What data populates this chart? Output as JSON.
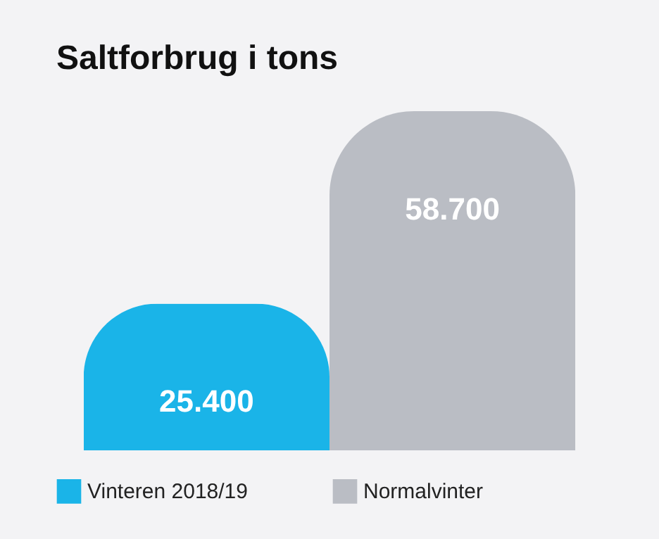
{
  "chart_data": {
    "type": "bar",
    "title": "Saltforbrug i tons",
    "categories": [
      null
    ],
    "legend": "bottom",
    "series": [
      {
        "name": "Vinteren 2018/19",
        "color": "#1ab4e8",
        "values": [
          25400
        ],
        "value_labels": [
          "25.400"
        ]
      },
      {
        "name": "Normalvinter",
        "color": "#babdc4",
        "values": [
          58700
        ],
        "value_labels": [
          "58.700"
        ]
      }
    ]
  }
}
